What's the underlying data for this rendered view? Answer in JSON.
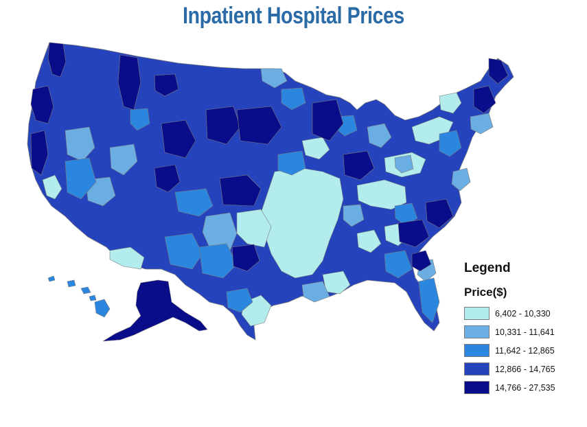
{
  "title": "Inpatient Hospital Prices",
  "legend": {
    "heading": "Legend",
    "subheading": "Price($)",
    "classes": [
      {
        "label": "6,402 - 10,330",
        "color": "#b3ecec"
      },
      {
        "label": "10,331 - 11,641",
        "color": "#6aaee4"
      },
      {
        "label": "11,642 - 12,865",
        "color": "#2b86e0"
      },
      {
        "label": "12,866 - 14,765",
        "color": "#2443bd"
      },
      {
        "label": "14,766 - 27,535",
        "color": "#0a0d8a"
      }
    ]
  },
  "map": {
    "region": "United States (contiguous, Alaska, Hawaii)",
    "boundary_color": "#7a7a7a"
  }
}
